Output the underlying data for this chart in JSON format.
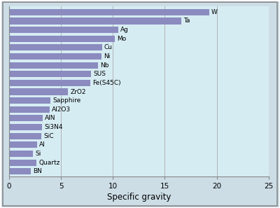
{
  "materials": [
    "W",
    "Ta",
    "Ag",
    "Mo",
    "Cu",
    "Ni",
    "Nb",
    "SUS",
    "Fe(S45C)",
    "ZrO2",
    "Sapphire",
    "Al2O3",
    "AlN",
    "Si3N4",
    "SiC",
    "Al",
    "Si",
    "Quartz",
    "BN"
  ],
  "values": [
    19.3,
    16.6,
    10.5,
    10.2,
    8.96,
    8.9,
    8.57,
    7.93,
    7.85,
    5.7,
    3.99,
    3.9,
    3.26,
    3.19,
    3.12,
    2.7,
    2.33,
    2.65,
    2.1
  ],
  "bar_color": "#8b8bbf",
  "bg_color": "#d6ecf3",
  "outer_bg": "#ccdde6",
  "grid_color": "#aaaaaa",
  "xlabel": "Specific gravity",
  "xlim": [
    0,
    25
  ],
  "xticks": [
    0,
    5,
    10,
    15,
    20,
    25
  ],
  "bar_height": 0.72,
  "label_fontsize": 6.5,
  "xlabel_fontsize": 8.5,
  "tick_fontsize": 7.5
}
